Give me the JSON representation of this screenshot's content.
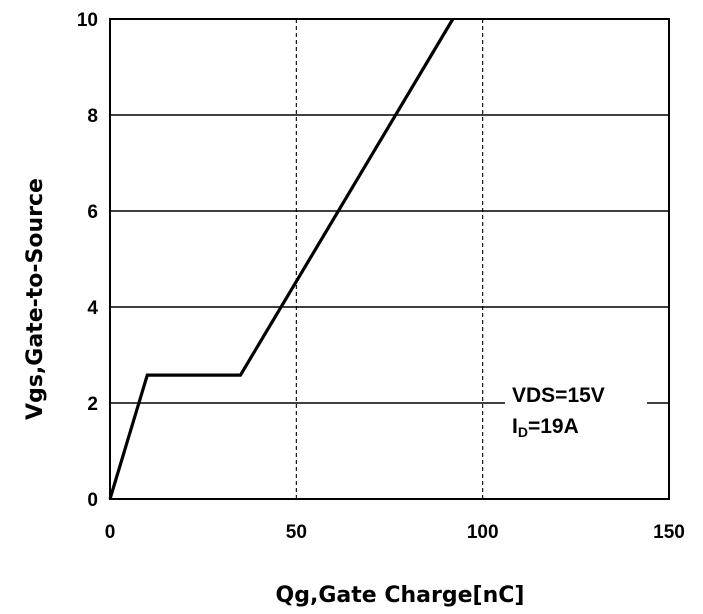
{
  "chart_data": {
    "type": "line",
    "xlabel": "Qg,Gate Charge[nC]",
    "ylabel": "Vgs,Gate-to-Source",
    "xlim": [
      0,
      150
    ],
    "ylim": [
      0,
      10
    ],
    "x_ticks": [
      0,
      50,
      100,
      150
    ],
    "y_ticks": [
      0,
      2,
      4,
      6,
      8,
      10
    ],
    "x_tick_labels": [
      "0",
      "50",
      "100",
      "150"
    ],
    "y_tick_labels": [
      "0",
      "2",
      "4",
      "6",
      "8",
      "10"
    ],
    "grid": {
      "horizontal": "solid",
      "vertical": "dashed"
    },
    "series": [
      {
        "x": [
          0,
          10,
          35,
          92
        ],
        "y": [
          0,
          2.58,
          2.58,
          10
        ],
        "color": "#000000"
      }
    ],
    "annotation": {
      "line1": "VDS=15V",
      "line2_main": "I",
      "line2_sub": "D",
      "line2_rest": "=19A",
      "placement": "lower-right"
    }
  }
}
